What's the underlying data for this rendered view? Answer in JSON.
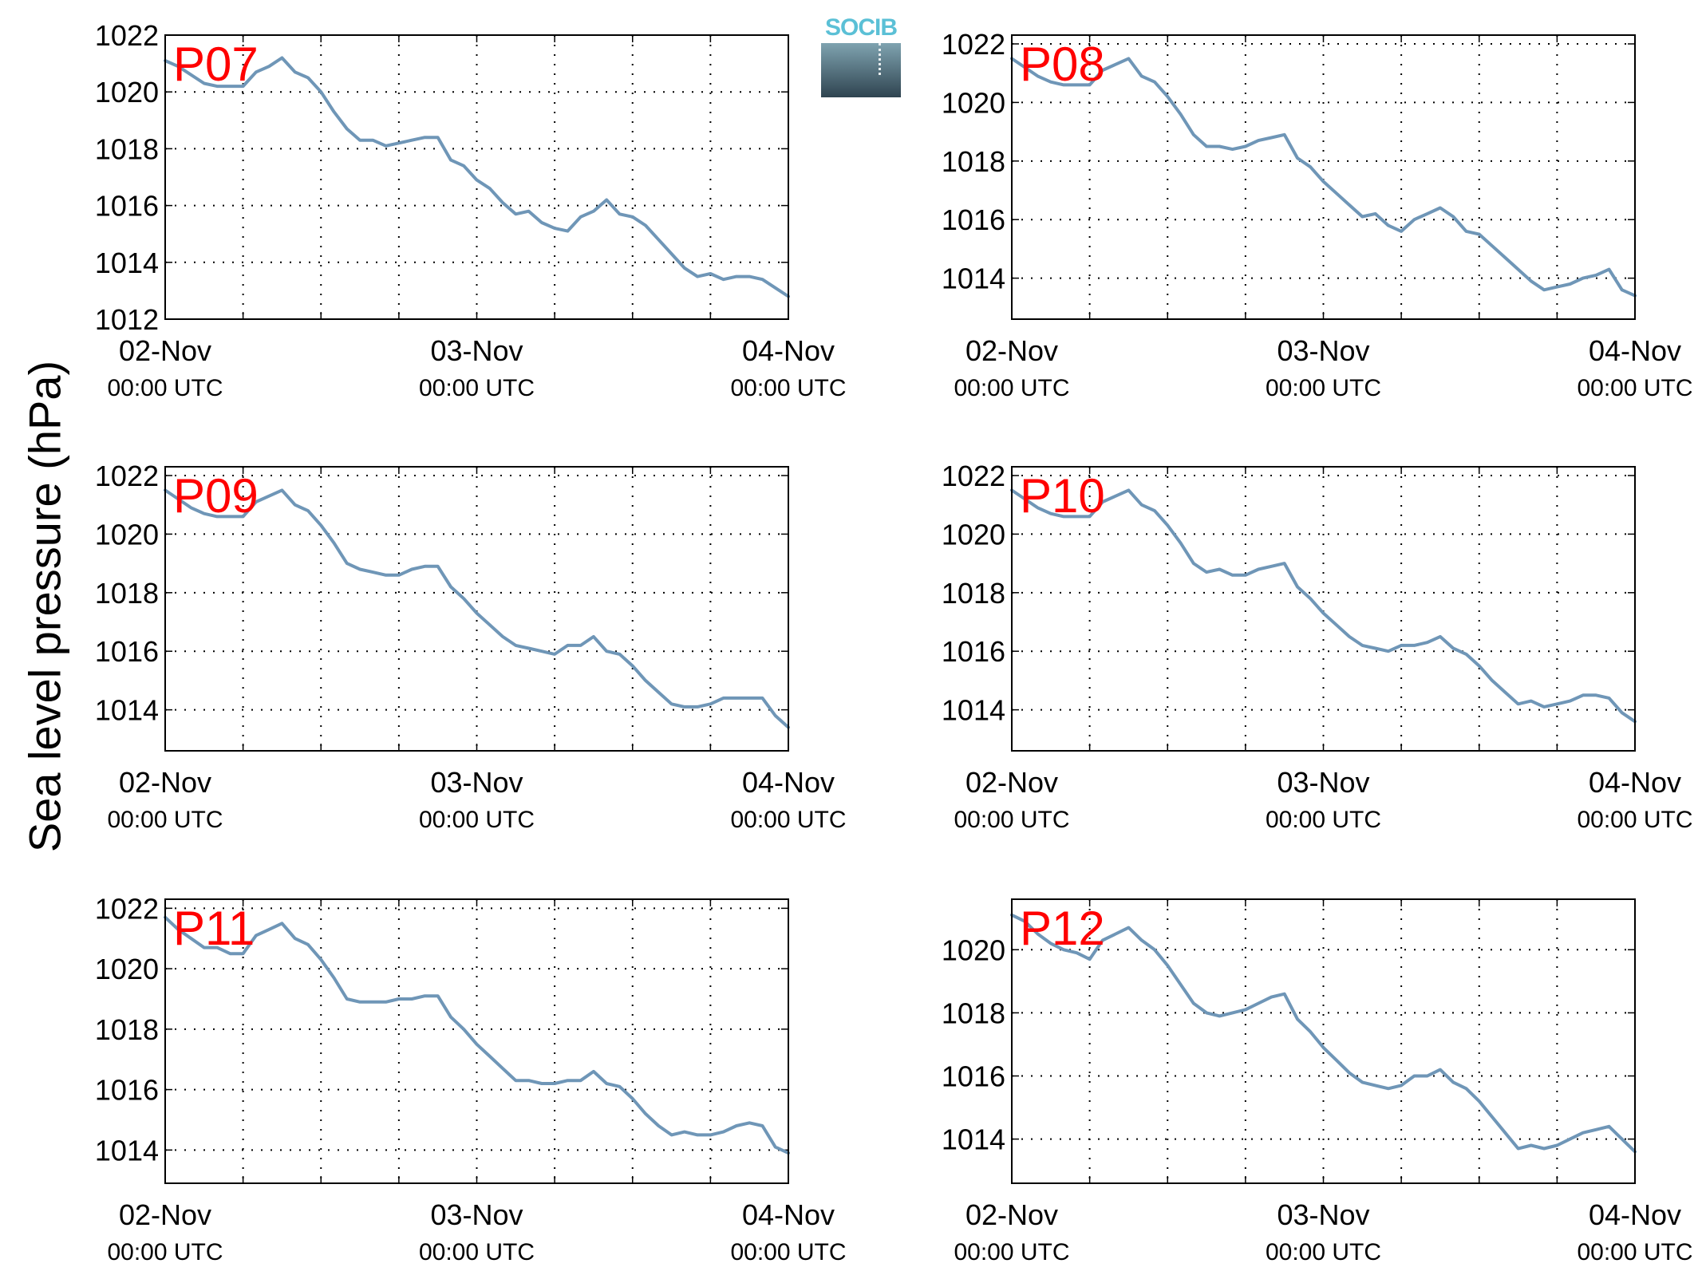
{
  "ylabel": "Sea level pressure (hPa)",
  "logo_text": "SOCIB",
  "colors": {
    "line": "#6f96b7",
    "label": "#ff0000",
    "axis": "#000000",
    "grid": "#000000"
  },
  "chart_data": [
    {
      "type": "line",
      "label": "P07",
      "x_tick_labels": [
        [
          "02-Nov",
          "00:00 UTC"
        ],
        [
          "03-Nov",
          "00:00 UTC"
        ],
        [
          "04-Nov",
          "00:00 UTC"
        ]
      ],
      "xlim": [
        0,
        48
      ],
      "ylim": [
        1012,
        1022
      ],
      "yticks": [
        1012,
        1014,
        1016,
        1018,
        1020,
        1022
      ],
      "grid": true,
      "series": [
        {
          "x": [
            0,
            1,
            2,
            3,
            4,
            5,
            6,
            7,
            8,
            9,
            10,
            11,
            12,
            13,
            14,
            15,
            16,
            17,
            18,
            19,
            20,
            21,
            22,
            23,
            24,
            25,
            26,
            27,
            28,
            29,
            30,
            31,
            32,
            33,
            34,
            35,
            36,
            37,
            38,
            39,
            40,
            41,
            42,
            43,
            44,
            45,
            46,
            47,
            48
          ],
          "values": [
            1021.1,
            1020.9,
            1020.6,
            1020.3,
            1020.2,
            1020.2,
            1020.2,
            1020.7,
            1020.9,
            1021.2,
            1020.7,
            1020.5,
            1020.0,
            1019.3,
            1018.7,
            1018.3,
            1018.3,
            1018.1,
            1018.2,
            1018.3,
            1018.4,
            1018.4,
            1017.6,
            1017.4,
            1016.9,
            1016.6,
            1016.1,
            1015.7,
            1015.8,
            1015.4,
            1015.2,
            1015.1,
            1015.6,
            1015.8,
            1016.2,
            1015.7,
            1015.6,
            1015.3,
            1014.8,
            1014.3,
            1013.8,
            1013.5,
            1013.6,
            1013.4,
            1013.5,
            1013.5,
            1013.4,
            1013.1,
            1012.8
          ]
        }
      ]
    },
    {
      "type": "line",
      "label": "P08",
      "x_tick_labels": [
        [
          "02-Nov",
          "00:00 UTC"
        ],
        [
          "03-Nov",
          "00:00 UTC"
        ],
        [
          "04-Nov",
          "00:00 UTC"
        ]
      ],
      "xlim": [
        0,
        48
      ],
      "ylim": [
        1012.6,
        1022.3
      ],
      "yticks": [
        1014,
        1016,
        1018,
        1020,
        1022
      ],
      "grid": true,
      "series": [
        {
          "x": [
            0,
            1,
            2,
            3,
            4,
            5,
            6,
            7,
            8,
            9,
            10,
            11,
            12,
            13,
            14,
            15,
            16,
            17,
            18,
            19,
            20,
            21,
            22,
            23,
            24,
            25,
            26,
            27,
            28,
            29,
            30,
            31,
            32,
            33,
            34,
            35,
            36,
            37,
            38,
            39,
            40,
            41,
            42,
            43,
            44,
            45,
            46,
            47,
            48
          ],
          "values": [
            1021.5,
            1021.2,
            1020.9,
            1020.7,
            1020.6,
            1020.6,
            1020.6,
            1021.1,
            1021.3,
            1021.5,
            1020.9,
            1020.7,
            1020.2,
            1019.6,
            1018.9,
            1018.5,
            1018.5,
            1018.4,
            1018.5,
            1018.7,
            1018.8,
            1018.9,
            1018.1,
            1017.8,
            1017.3,
            1016.9,
            1016.5,
            1016.1,
            1016.2,
            1015.8,
            1015.6,
            1016.0,
            1016.2,
            1016.4,
            1016.1,
            1015.6,
            1015.5,
            1015.1,
            1014.7,
            1014.3,
            1013.9,
            1013.6,
            1013.7,
            1013.8,
            1014.0,
            1014.1,
            1014.3,
            1013.6,
            1013.4
          ]
        }
      ]
    },
    {
      "type": "line",
      "label": "P09",
      "x_tick_labels": [
        [
          "02-Nov",
          "00:00 UTC"
        ],
        [
          "03-Nov",
          "00:00 UTC"
        ],
        [
          "04-Nov",
          "00:00 UTC"
        ]
      ],
      "xlim": [
        0,
        48
      ],
      "ylim": [
        1012.6,
        1022.3
      ],
      "yticks": [
        1014,
        1016,
        1018,
        1020,
        1022
      ],
      "grid": true,
      "series": [
        {
          "x": [
            0,
            1,
            2,
            3,
            4,
            5,
            6,
            7,
            8,
            9,
            10,
            11,
            12,
            13,
            14,
            15,
            16,
            17,
            18,
            19,
            20,
            21,
            22,
            23,
            24,
            25,
            26,
            27,
            28,
            29,
            30,
            31,
            32,
            33,
            34,
            35,
            36,
            37,
            38,
            39,
            40,
            41,
            42,
            43,
            44,
            45,
            46,
            47,
            48
          ],
          "values": [
            1021.5,
            1021.2,
            1020.9,
            1020.7,
            1020.6,
            1020.6,
            1020.6,
            1021.1,
            1021.3,
            1021.5,
            1021.0,
            1020.8,
            1020.3,
            1019.7,
            1019.0,
            1018.8,
            1018.7,
            1018.6,
            1018.6,
            1018.8,
            1018.9,
            1018.9,
            1018.2,
            1017.8,
            1017.3,
            1016.9,
            1016.5,
            1016.2,
            1016.1,
            1016.0,
            1015.9,
            1016.2,
            1016.2,
            1016.5,
            1016.0,
            1015.9,
            1015.5,
            1015.0,
            1014.6,
            1014.2,
            1014.1,
            1014.1,
            1014.2,
            1014.4,
            1014.4,
            1014.4,
            1014.4,
            1013.8,
            1013.4
          ]
        }
      ]
    },
    {
      "type": "line",
      "label": "P10",
      "x_tick_labels": [
        [
          "02-Nov",
          "00:00 UTC"
        ],
        [
          "03-Nov",
          "00:00 UTC"
        ],
        [
          "04-Nov",
          "00:00 UTC"
        ]
      ],
      "xlim": [
        0,
        48
      ],
      "ylim": [
        1012.6,
        1022.3
      ],
      "yticks": [
        1014,
        1016,
        1018,
        1020,
        1022
      ],
      "grid": true,
      "series": [
        {
          "x": [
            0,
            1,
            2,
            3,
            4,
            5,
            6,
            7,
            8,
            9,
            10,
            11,
            12,
            13,
            14,
            15,
            16,
            17,
            18,
            19,
            20,
            21,
            22,
            23,
            24,
            25,
            26,
            27,
            28,
            29,
            30,
            31,
            32,
            33,
            34,
            35,
            36,
            37,
            38,
            39,
            40,
            41,
            42,
            43,
            44,
            45,
            46,
            47,
            48
          ],
          "values": [
            1021.5,
            1021.2,
            1020.9,
            1020.7,
            1020.6,
            1020.6,
            1020.6,
            1021.1,
            1021.3,
            1021.5,
            1021.0,
            1020.8,
            1020.3,
            1019.7,
            1019.0,
            1018.7,
            1018.8,
            1018.6,
            1018.6,
            1018.8,
            1018.9,
            1019.0,
            1018.2,
            1017.8,
            1017.3,
            1016.9,
            1016.5,
            1016.2,
            1016.1,
            1016.0,
            1016.2,
            1016.2,
            1016.3,
            1016.5,
            1016.1,
            1015.9,
            1015.5,
            1015.0,
            1014.6,
            1014.2,
            1014.3,
            1014.1,
            1014.2,
            1014.3,
            1014.5,
            1014.5,
            1014.4,
            1013.9,
            1013.6
          ]
        }
      ]
    },
    {
      "type": "line",
      "label": "P11",
      "x_tick_labels": [
        [
          "02-Nov",
          "00:00 UTC"
        ],
        [
          "03-Nov",
          "00:00 UTC"
        ],
        [
          "04-Nov",
          "00:00 UTC"
        ]
      ],
      "xlim": [
        0,
        48
      ],
      "ylim": [
        1012.9,
        1022.3
      ],
      "yticks": [
        1014,
        1016,
        1018,
        1020,
        1022
      ],
      "grid": true,
      "series": [
        {
          "x": [
            0,
            1,
            2,
            3,
            4,
            5,
            6,
            7,
            8,
            9,
            10,
            11,
            12,
            13,
            14,
            15,
            16,
            17,
            18,
            19,
            20,
            21,
            22,
            23,
            24,
            25,
            26,
            27,
            28,
            29,
            30,
            31,
            32,
            33,
            34,
            35,
            36,
            37,
            38,
            39,
            40,
            41,
            42,
            43,
            44,
            45,
            46,
            47,
            48
          ],
          "values": [
            1021.7,
            1021.3,
            1021.0,
            1020.7,
            1020.7,
            1020.5,
            1020.5,
            1021.1,
            1021.3,
            1021.5,
            1021.0,
            1020.8,
            1020.3,
            1019.7,
            1019.0,
            1018.9,
            1018.9,
            1018.9,
            1019.0,
            1019.0,
            1019.1,
            1019.1,
            1018.4,
            1018.0,
            1017.5,
            1017.1,
            1016.7,
            1016.3,
            1016.3,
            1016.2,
            1016.2,
            1016.3,
            1016.3,
            1016.6,
            1016.2,
            1016.1,
            1015.7,
            1015.2,
            1014.8,
            1014.5,
            1014.6,
            1014.5,
            1014.5,
            1014.6,
            1014.8,
            1014.9,
            1014.8,
            1014.1,
            1013.9
          ]
        }
      ]
    },
    {
      "type": "line",
      "label": "P12",
      "x_tick_labels": [
        [
          "02-Nov",
          "00:00 UTC"
        ],
        [
          "03-Nov",
          "00:00 UTC"
        ],
        [
          "04-Nov",
          "00:00 UTC"
        ]
      ],
      "xlim": [
        0,
        48
      ],
      "ylim": [
        1012.6,
        1021.6
      ],
      "yticks": [
        1014,
        1016,
        1018,
        1020
      ],
      "grid": true,
      "series": [
        {
          "x": [
            0,
            1,
            2,
            3,
            4,
            5,
            6,
            7,
            8,
            9,
            10,
            11,
            12,
            13,
            14,
            15,
            16,
            17,
            18,
            19,
            20,
            21,
            22,
            23,
            24,
            25,
            26,
            27,
            28,
            29,
            30,
            31,
            32,
            33,
            34,
            35,
            36,
            37,
            38,
            39,
            40,
            41,
            42,
            43,
            44,
            45,
            46,
            47,
            48
          ],
          "values": [
            1021.1,
            1020.9,
            1020.5,
            1020.2,
            1020.0,
            1019.9,
            1019.7,
            1020.3,
            1020.5,
            1020.7,
            1020.3,
            1020.0,
            1019.5,
            1018.9,
            1018.3,
            1018.0,
            1017.9,
            1018.0,
            1018.1,
            1018.3,
            1018.5,
            1018.6,
            1017.8,
            1017.4,
            1016.9,
            1016.5,
            1016.1,
            1015.8,
            1015.7,
            1015.6,
            1015.7,
            1016.0,
            1016.0,
            1016.2,
            1015.8,
            1015.6,
            1015.2,
            1014.7,
            1014.2,
            1013.7,
            1013.8,
            1013.7,
            1013.8,
            1014.0,
            1014.2,
            1014.3,
            1014.4,
            1014.0,
            1013.6
          ]
        }
      ]
    }
  ]
}
